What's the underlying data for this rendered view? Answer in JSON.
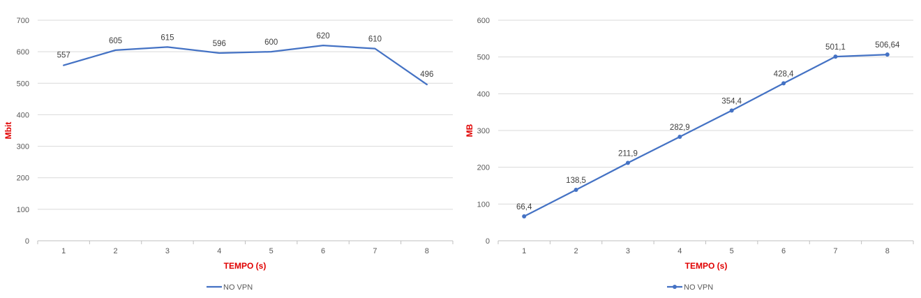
{
  "chart_data": [
    {
      "type": "line",
      "categories": [
        "1",
        "2",
        "3",
        "4",
        "5",
        "6",
        "7",
        "8"
      ],
      "series": [
        {
          "name": "NO VPN",
          "values": [
            557,
            605,
            615,
            596,
            600,
            620,
            610,
            496
          ],
          "labels": [
            "557",
            "605",
            "615",
            "596",
            "600",
            "620",
            "610",
            "496"
          ],
          "markers": false
        }
      ],
      "xlabel": "TEMPO (s)",
      "ylabel": "Mbit",
      "ylim": [
        0,
        700
      ],
      "yticks": [
        "0",
        "100",
        "200",
        "300",
        "400",
        "500",
        "600",
        "700"
      ],
      "grid": true,
      "legend": "bottom",
      "colors": {
        "line": "#4472c4",
        "axis_title": "#e00000",
        "grid": "#d9d9d9"
      }
    },
    {
      "type": "line",
      "categories": [
        "1",
        "2",
        "3",
        "4",
        "5",
        "6",
        "7",
        "8"
      ],
      "series": [
        {
          "name": "NO VPN",
          "values": [
            66.4,
            138.5,
            211.9,
            282.9,
            354.4,
            428.4,
            501.1,
            506.64
          ],
          "labels": [
            "66,4",
            "138,5",
            "211,9",
            "282,9",
            "354,4",
            "428,4",
            "501,1",
            "506,64"
          ],
          "markers": true
        }
      ],
      "xlabel": "TEMPO (s)",
      "ylabel": "MB",
      "ylim": [
        0,
        600
      ],
      "yticks": [
        "0",
        "100",
        "200",
        "300",
        "400",
        "500",
        "600"
      ],
      "grid": true,
      "legend": "bottom",
      "colors": {
        "line": "#4472c4",
        "axis_title": "#e00000",
        "grid": "#d9d9d9"
      }
    }
  ]
}
